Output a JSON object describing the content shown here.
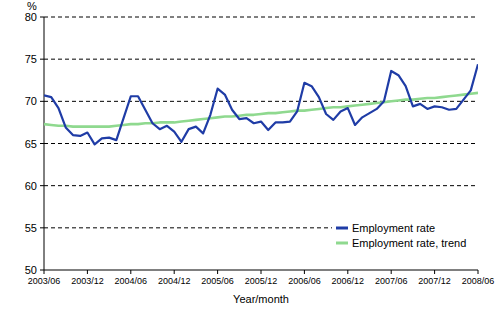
{
  "chart_data": {
    "type": "line",
    "y_label": "%",
    "x_label": "Year/month",
    "categories": [
      "2003/06",
      null,
      null,
      null,
      null,
      null,
      "2003/12",
      null,
      null,
      null,
      null,
      null,
      "2004/06",
      null,
      null,
      null,
      null,
      null,
      "2004/12",
      null,
      null,
      null,
      null,
      null,
      "2005/06",
      null,
      null,
      null,
      null,
      null,
      "2005/12",
      null,
      null,
      null,
      null,
      null,
      "2006/06",
      null,
      null,
      null,
      null,
      null,
      "2006/12",
      null,
      null,
      null,
      null,
      null,
      "2007/06",
      null,
      null,
      null,
      null,
      null,
      "2007/12",
      null,
      null,
      null,
      null,
      null,
      "2008/06"
    ],
    "series": [
      {
        "name": "Employment rate",
        "color": "#1f3ca6",
        "values": [
          70.7,
          70.5,
          69.2,
          66.9,
          66.0,
          65.9,
          66.3,
          64.9,
          65.6,
          65.7,
          65.4,
          68.0,
          70.6,
          70.6,
          69.0,
          67.4,
          66.7,
          67.1,
          66.4,
          65.2,
          66.7,
          67.0,
          66.2,
          68.4,
          71.5,
          70.8,
          69.0,
          67.9,
          68.0,
          67.4,
          67.6,
          66.6,
          67.5,
          67.5,
          67.6,
          68.8,
          72.2,
          71.8,
          70.5,
          68.5,
          67.8,
          68.8,
          69.2,
          67.2,
          68.1,
          68.6,
          69.1,
          70.0,
          73.6,
          73.1,
          71.8,
          69.4,
          69.7,
          69.1,
          69.4,
          69.3,
          69.0,
          69.1,
          70.2,
          71.3,
          74.4
        ]
      },
      {
        "name": "Employment rate, trend",
        "color": "#8fd98f",
        "values": [
          67.3,
          67.2,
          67.1,
          67.1,
          67.0,
          67.0,
          67.0,
          67.0,
          67.0,
          67.0,
          67.1,
          67.2,
          67.3,
          67.3,
          67.4,
          67.4,
          67.5,
          67.5,
          67.5,
          67.6,
          67.7,
          67.8,
          67.9,
          68.0,
          68.1,
          68.2,
          68.2,
          68.3,
          68.4,
          68.4,
          68.5,
          68.6,
          68.6,
          68.7,
          68.8,
          68.9,
          68.9,
          69.0,
          69.1,
          69.2,
          69.3,
          69.3,
          69.4,
          69.5,
          69.6,
          69.7,
          69.8,
          69.9,
          70.0,
          70.1,
          70.2,
          70.2,
          70.3,
          70.4,
          70.4,
          70.5,
          70.6,
          70.7,
          70.8,
          70.9,
          71.0
        ]
      }
    ],
    "ylim": [
      50,
      80
    ],
    "yticks": [
      50,
      55,
      60,
      65,
      70,
      75,
      80
    ],
    "grid": true,
    "legend": "lower right"
  }
}
